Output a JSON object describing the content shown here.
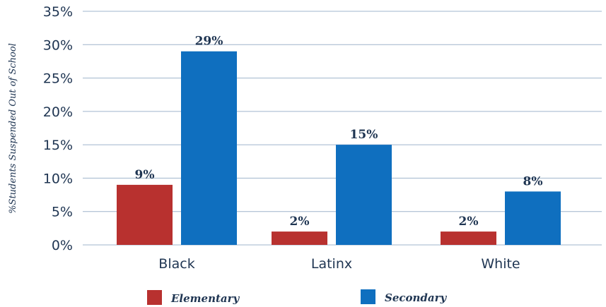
{
  "chart_data": {
    "type": "bar",
    "categories": [
      "Black",
      "Latinx",
      "White"
    ],
    "series": [
      {
        "name": "Elementary",
        "values": [
          9,
          2,
          2
        ],
        "labels": [
          "9%",
          "2%",
          "2%"
        ],
        "color": "#b8312f"
      },
      {
        "name": "Secondary",
        "values": [
          29,
          15,
          8
        ],
        "labels": [
          "29%",
          "15%",
          "8%"
        ],
        "color": "#0f6fbf"
      }
    ],
    "ylabel": "%Students Suspended Out of School",
    "xlabel": "",
    "ylim": [
      0,
      35
    ],
    "yticks": [
      0,
      5,
      10,
      15,
      20,
      25,
      30,
      35
    ],
    "ytick_labels": [
      "0%",
      "5%",
      "10%",
      "15%",
      "20%",
      "25%",
      "30%",
      "35%"
    ],
    "grid": true,
    "legend_position": "bottom"
  }
}
